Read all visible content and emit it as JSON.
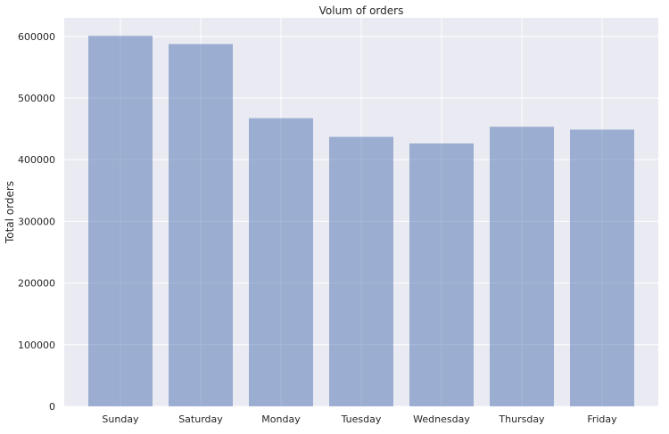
{
  "chart_data": {
    "type": "bar",
    "title": "Volum of orders",
    "xlabel": "",
    "ylabel": "Total orders",
    "categories": [
      "Sunday",
      "Saturday",
      "Monday",
      "Tuesday",
      "Wednesday",
      "Thursday",
      "Friday"
    ],
    "values": [
      600905,
      587478,
      467260,
      436972,
      426339,
      453368,
      448761
    ],
    "ylim": [
      0,
      630000
    ],
    "yticks": [
      0,
      100000,
      200000,
      300000,
      400000,
      500000,
      600000
    ],
    "grid": true,
    "colors": {
      "bar": "#4c72b0",
      "bar_opacity": 0.5,
      "plot_background": "#eaeaf2",
      "grid": "#ffffff"
    }
  }
}
